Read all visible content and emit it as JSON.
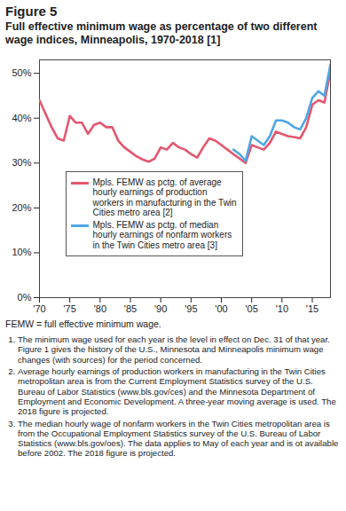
{
  "chart_data": {
    "type": "line",
    "title": "Figure 5",
    "subtitle": "Full effective minimum wage as percentage of two different wage indices, Minneapolis, 1970-2018 [1]",
    "x": [
      1970,
      1971,
      1972,
      1973,
      1974,
      1975,
      1976,
      1977,
      1978,
      1979,
      1980,
      1981,
      1982,
      1983,
      1984,
      1985,
      1986,
      1987,
      1988,
      1989,
      1990,
      1991,
      1992,
      1993,
      1994,
      1995,
      1996,
      1997,
      1998,
      1999,
      2000,
      2001,
      2002,
      2003,
      2004,
      2005,
      2006,
      2007,
      2008,
      2009,
      2010,
      2011,
      2012,
      2013,
      2014,
      2015,
      2016,
      2017,
      2018
    ],
    "xlim": [
      1970,
      2018
    ],
    "xticks": [
      {
        "value": 1970,
        "label": "'70"
      },
      {
        "value": 1975,
        "label": "'75"
      },
      {
        "value": 1980,
        "label": "'80"
      },
      {
        "value": 1985,
        "label": "'85"
      },
      {
        "value": 1990,
        "label": "'90"
      },
      {
        "value": 1995,
        "label": "'95"
      },
      {
        "value": 2000,
        "label": "'00"
      },
      {
        "value": 2005,
        "label": "'05"
      },
      {
        "value": 2010,
        "label": "'10"
      },
      {
        "value": 2015,
        "label": "'15"
      }
    ],
    "ylim": [
      0,
      53
    ],
    "yticks": [
      {
        "value": 0,
        "label": "0%"
      },
      {
        "value": 10,
        "label": "10%"
      },
      {
        "value": 20,
        "label": "20%"
      },
      {
        "value": 30,
        "label": "30%"
      },
      {
        "value": 40,
        "label": "40%"
      },
      {
        "value": 50,
        "label": "50%"
      }
    ],
    "grid": false,
    "legend": "bottom",
    "series": [
      {
        "name": "Mpls. FEMW as pctg. of average hourly earnings of production workers in manufacturing in the Twin Cities metro area [2]",
        "color": "#e5566d",
        "values": [
          44,
          41,
          38,
          35.5,
          35,
          40.5,
          39,
          39,
          36.5,
          38.5,
          39,
          38,
          38,
          35,
          33.5,
          32.5,
          31.5,
          30.8,
          30.3,
          31,
          33.5,
          33,
          34.5,
          33.5,
          33,
          32,
          31.2,
          33.5,
          35.5,
          35,
          34,
          33,
          32,
          31,
          30,
          34,
          33.5,
          33,
          34.5,
          37,
          36.5,
          36,
          35.8,
          35.5,
          38,
          43,
          44,
          43.5,
          50.5
        ]
      },
      {
        "name": "Mpls. FEMW as pctg. of median hourly earnings of nonfarm workers in the Twin Cities metro area [3]",
        "color": "#4ea6e6",
        "values": [
          null,
          null,
          null,
          null,
          null,
          null,
          null,
          null,
          null,
          null,
          null,
          null,
          null,
          null,
          null,
          null,
          null,
          null,
          null,
          null,
          null,
          null,
          null,
          null,
          null,
          null,
          null,
          null,
          null,
          null,
          null,
          null,
          33,
          32,
          30.5,
          36,
          35,
          34,
          36,
          39.5,
          39.5,
          39,
          38,
          37.5,
          40,
          44.5,
          46,
          45,
          52
        ]
      }
    ],
    "caption": "FEMW = full effective minimum wage.",
    "notes": [
      "The minimum wage used for each year is the level in effect on Dec. 31 of that year. Figure 1 gives the history of the U.S., Minnesota and Minneapolis minimum wage changes (with sources) for the period concerned.",
      "Average hourly earnings of production workers in manufacturing in the Twin Cities metropolitan area is from the Current Employment Statistics survey of the U.S. Bureau of Labor Statistics (www.bls.gov/ces) and the Minnesota Department of Employment and Economic Development. A three-year moving average is used. The 2018 figure is projected.",
      "The median hourly wage of nonfarm workers in the Twin Cities metropolitan area is from the Occupational Employment Statistics survey of the U.S. Bureau of Labor Statistics (www.bls.gov/oes). The data applies to May of each year and is ot available before 2002. The 2018 figure is projected."
    ]
  }
}
